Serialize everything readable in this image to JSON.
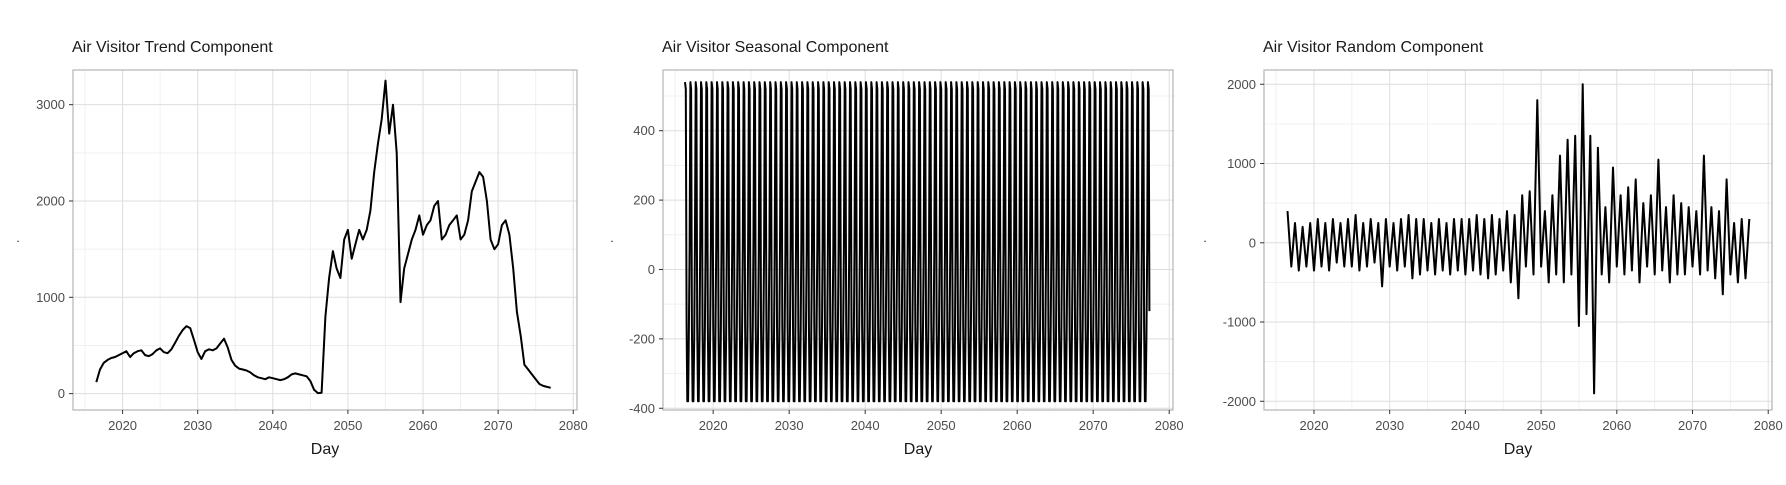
{
  "colors": {
    "line": "#000000",
    "grid_major": "#dedede",
    "grid_minor": "#f0f0f0",
    "frame": "#b3b3b3",
    "background": "#ffffff"
  },
  "chart_data": [
    {
      "type": "line",
      "title": "Air Visitor Trend Component",
      "xlabel": "Day",
      "ylabel": ".",
      "xlim": [
        2013.4,
        2080.5
      ],
      "ylim": [
        -170,
        3360
      ],
      "x_ticks": [
        2020,
        2030,
        2040,
        2050,
        2060,
        2070,
        2080
      ],
      "y_ticks": [
        0,
        1000,
        2000,
        3000
      ],
      "grid": true,
      "series": [
        {
          "values": [
            [
              2016.5,
              120
            ],
            [
              2017.0,
              250
            ],
            [
              2017.5,
              320
            ],
            [
              2018.0,
              350
            ],
            [
              2018.5,
              370
            ],
            [
              2019.0,
              380
            ],
            [
              2019.5,
              400
            ],
            [
              2020.0,
              420
            ],
            [
              2020.5,
              440
            ],
            [
              2021.0,
              380
            ],
            [
              2021.5,
              420
            ],
            [
              2022.0,
              440
            ],
            [
              2022.5,
              450
            ],
            [
              2023.0,
              400
            ],
            [
              2023.5,
              390
            ],
            [
              2024.0,
              410
            ],
            [
              2024.5,
              450
            ],
            [
              2025.0,
              470
            ],
            [
              2025.5,
              430
            ],
            [
              2026.0,
              420
            ],
            [
              2026.5,
              460
            ],
            [
              2027.0,
              530
            ],
            [
              2027.5,
              600
            ],
            [
              2028.0,
              660
            ],
            [
              2028.5,
              700
            ],
            [
              2029.0,
              680
            ],
            [
              2029.5,
              560
            ],
            [
              2030.0,
              430
            ],
            [
              2030.5,
              360
            ],
            [
              2031.0,
              440
            ],
            [
              2031.5,
              460
            ],
            [
              2032.0,
              450
            ],
            [
              2032.5,
              470
            ],
            [
              2033.0,
              520
            ],
            [
              2033.5,
              570
            ],
            [
              2034.0,
              480
            ],
            [
              2034.5,
              350
            ],
            [
              2035.0,
              290
            ],
            [
              2035.5,
              260
            ],
            [
              2036.0,
              250
            ],
            [
              2036.5,
              240
            ],
            [
              2037.0,
              220
            ],
            [
              2037.5,
              190
            ],
            [
              2038.0,
              170
            ],
            [
              2038.5,
              160
            ],
            [
              2039.0,
              150
            ],
            [
              2039.5,
              170
            ],
            [
              2040.0,
              160
            ],
            [
              2040.5,
              150
            ],
            [
              2041.0,
              140
            ],
            [
              2041.5,
              150
            ],
            [
              2042.0,
              170
            ],
            [
              2042.5,
              200
            ],
            [
              2043.0,
              210
            ],
            [
              2043.5,
              200
            ],
            [
              2044.0,
              190
            ],
            [
              2044.5,
              180
            ],
            [
              2045.0,
              130
            ],
            [
              2045.5,
              40
            ],
            [
              2046.0,
              5
            ],
            [
              2046.5,
              10
            ],
            [
              2047.0,
              800
            ],
            [
              2047.5,
              1200
            ],
            [
              2048.0,
              1480
            ],
            [
              2048.5,
              1300
            ],
            [
              2049.0,
              1200
            ],
            [
              2049.5,
              1600
            ],
            [
              2050.0,
              1700
            ],
            [
              2050.5,
              1400
            ],
            [
              2051.0,
              1550
            ],
            [
              2051.5,
              1700
            ],
            [
              2052.0,
              1600
            ],
            [
              2052.5,
              1700
            ],
            [
              2053.0,
              1900
            ],
            [
              2053.5,
              2300
            ],
            [
              2054.0,
              2600
            ],
            [
              2054.5,
              2850
            ],
            [
              2055.0,
              3250
            ],
            [
              2055.5,
              2700
            ],
            [
              2056.0,
              3000
            ],
            [
              2056.5,
              2500
            ],
            [
              2057.0,
              950
            ],
            [
              2057.5,
              1300
            ],
            [
              2058.0,
              1450
            ],
            [
              2058.5,
              1600
            ],
            [
              2059.0,
              1700
            ],
            [
              2059.5,
              1850
            ],
            [
              2060.0,
              1650
            ],
            [
              2060.5,
              1750
            ],
            [
              2061.0,
              1800
            ],
            [
              2061.5,
              1950
            ],
            [
              2062.0,
              2000
            ],
            [
              2062.5,
              1600
            ],
            [
              2063.0,
              1650
            ],
            [
              2063.5,
              1750
            ],
            [
              2064.0,
              1800
            ],
            [
              2064.5,
              1850
            ],
            [
              2065.0,
              1600
            ],
            [
              2065.5,
              1650
            ],
            [
              2066.0,
              1800
            ],
            [
              2066.5,
              2100
            ],
            [
              2067.0,
              2200
            ],
            [
              2067.5,
              2300
            ],
            [
              2068.0,
              2250
            ],
            [
              2068.5,
              2000
            ],
            [
              2069.0,
              1600
            ],
            [
              2069.5,
              1500
            ],
            [
              2070.0,
              1550
            ],
            [
              2070.5,
              1750
            ],
            [
              2071.0,
              1800
            ],
            [
              2071.5,
              1650
            ],
            [
              2072.0,
              1300
            ],
            [
              2072.5,
              850
            ],
            [
              2073.0,
              600
            ],
            [
              2073.5,
              300
            ],
            [
              2074.0,
              250
            ],
            [
              2074.5,
              200
            ],
            [
              2075.0,
              150
            ],
            [
              2075.5,
              100
            ],
            [
              2076.0,
              80
            ],
            [
              2077.0,
              60
            ]
          ]
        }
      ]
    },
    {
      "type": "line",
      "title": "Air Visitor Seasonal Component",
      "xlabel": "Day",
      "ylabel": ".",
      "xlim": [
        2013.4,
        2080.5
      ],
      "ylim": [
        -405,
        575
      ],
      "x_ticks": [
        2020,
        2030,
        2040,
        2050,
        2060,
        2070,
        2080
      ],
      "y_ticks": [
        -400,
        -200,
        0,
        200,
        400
      ],
      "grid": true,
      "series": [
        {
          "x_start": 2016.3,
          "x_end": 2077.3,
          "period": 0.7,
          "pattern": [
            540,
            520,
            -160,
            -380,
            -380,
            -200,
            60
          ],
          "end_value": -120
        }
      ]
    },
    {
      "type": "line",
      "title": "Air Visitor Random Component",
      "xlabel": "Day",
      "ylabel": ".",
      "xlim": [
        2013.4,
        2080.5
      ],
      "ylim": [
        -2110,
        2180
      ],
      "x_ticks": [
        2020,
        2030,
        2040,
        2050,
        2060,
        2070,
        2080
      ],
      "y_ticks": [
        -2000,
        -1000,
        0,
        1000,
        2000
      ],
      "grid": true,
      "series": [
        {
          "values": [
            [
              2016.5,
              400
            ],
            [
              2017.0,
              -300
            ],
            [
              2017.5,
              250
            ],
            [
              2018.0,
              -350
            ],
            [
              2018.5,
              200
            ],
            [
              2019.0,
              -300
            ],
            [
              2019.5,
              250
            ],
            [
              2020.0,
              -350
            ],
            [
              2020.5,
              300
            ],
            [
              2021.0,
              -300
            ],
            [
              2021.5,
              250
            ],
            [
              2022.0,
              -350
            ],
            [
              2022.5,
              300
            ],
            [
              2023.0,
              -250
            ],
            [
              2023.5,
              250
            ],
            [
              2024.0,
              -300
            ],
            [
              2024.5,
              300
            ],
            [
              2025.0,
              -300
            ],
            [
              2025.5,
              350
            ],
            [
              2026.0,
              -350
            ],
            [
              2026.5,
              250
            ],
            [
              2027.0,
              -300
            ],
            [
              2027.5,
              300
            ],
            [
              2028.0,
              -250
            ],
            [
              2028.5,
              250
            ],
            [
              2029.0,
              -550
            ],
            [
              2029.5,
              300
            ],
            [
              2030.0,
              -300
            ],
            [
              2030.5,
              250
            ],
            [
              2031.0,
              -350
            ],
            [
              2031.5,
              300
            ],
            [
              2032.0,
              -300
            ],
            [
              2032.5,
              350
            ],
            [
              2033.0,
              -450
            ],
            [
              2033.5,
              300
            ],
            [
              2034.0,
              -400
            ],
            [
              2034.5,
              300
            ],
            [
              2035.0,
              -350
            ],
            [
              2035.5,
              250
            ],
            [
              2036.0,
              -400
            ],
            [
              2036.5,
              300
            ],
            [
              2037.0,
              -350
            ],
            [
              2037.5,
              250
            ],
            [
              2038.0,
              -400
            ],
            [
              2038.5,
              300
            ],
            [
              2039.0,
              -350
            ],
            [
              2039.5,
              300
            ],
            [
              2040.0,
              -400
            ],
            [
              2040.5,
              300
            ],
            [
              2041.0,
              -350
            ],
            [
              2041.5,
              350
            ],
            [
              2042.0,
              -400
            ],
            [
              2042.5,
              300
            ],
            [
              2043.0,
              -450
            ],
            [
              2043.5,
              350
            ],
            [
              2044.0,
              -400
            ],
            [
              2044.5,
              300
            ],
            [
              2045.0,
              -350
            ],
            [
              2045.5,
              400
            ],
            [
              2046.0,
              -500
            ],
            [
              2046.5,
              350
            ],
            [
              2047.0,
              -700
            ],
            [
              2047.5,
              600
            ],
            [
              2048.0,
              -300
            ],
            [
              2048.5,
              650
            ],
            [
              2049.0,
              -400
            ],
            [
              2049.5,
              1800
            ],
            [
              2050.0,
              -300
            ],
            [
              2050.5,
              400
            ],
            [
              2051.0,
              -500
            ],
            [
              2051.5,
              600
            ],
            [
              2052.0,
              -400
            ],
            [
              2052.5,
              1100
            ],
            [
              2053.0,
              -500
            ],
            [
              2053.5,
              1300
            ],
            [
              2054.0,
              -400
            ],
            [
              2054.5,
              1350
            ],
            [
              2055.0,
              -1050
            ],
            [
              2055.5,
              2000
            ],
            [
              2056.0,
              -900
            ],
            [
              2056.5,
              1350
            ],
            [
              2057.0,
              -1900
            ],
            [
              2057.5,
              1200
            ],
            [
              2058.0,
              -400
            ],
            [
              2058.5,
              450
            ],
            [
              2059.0,
              -500
            ],
            [
              2059.5,
              950
            ],
            [
              2060.0,
              -300
            ],
            [
              2060.5,
              600
            ],
            [
              2061.0,
              -400
            ],
            [
              2061.5,
              700
            ],
            [
              2062.0,
              -350
            ],
            [
              2062.5,
              800
            ],
            [
              2063.0,
              -500
            ],
            [
              2063.5,
              500
            ],
            [
              2064.0,
              -300
            ],
            [
              2064.5,
              600
            ],
            [
              2065.0,
              -400
            ],
            [
              2065.5,
              1050
            ],
            [
              2066.0,
              -350
            ],
            [
              2066.5,
              450
            ],
            [
              2067.0,
              -500
            ],
            [
              2067.5,
              600
            ],
            [
              2068.0,
              -400
            ],
            [
              2068.5,
              500
            ],
            [
              2069.0,
              -400
            ],
            [
              2069.5,
              450
            ],
            [
              2070.0,
              -300
            ],
            [
              2070.5,
              400
            ],
            [
              2071.0,
              -400
            ],
            [
              2071.5,
              1100
            ],
            [
              2072.0,
              -350
            ],
            [
              2072.5,
              450
            ],
            [
              2073.0,
              -450
            ],
            [
              2073.5,
              400
            ],
            [
              2074.0,
              -650
            ],
            [
              2074.5,
              800
            ],
            [
              2075.0,
              -400
            ],
            [
              2075.5,
              250
            ],
            [
              2076.0,
              -500
            ],
            [
              2076.5,
              300
            ],
            [
              2077.0,
              -450
            ],
            [
              2077.5,
              300
            ]
          ]
        }
      ]
    }
  ]
}
